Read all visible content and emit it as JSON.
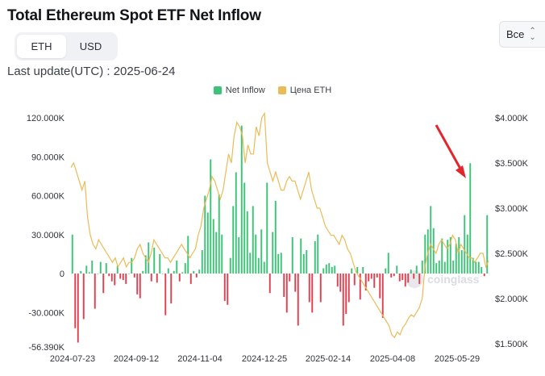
{
  "title": "Total Ethereum Spot ETF Net Inflow",
  "toggle": {
    "options": [
      "ETH",
      "USD"
    ],
    "selected": "ETH"
  },
  "last_update": "Last update(UTC) : 2025-06-24",
  "range_select": {
    "value": "Все"
  },
  "watermark": "coinglass",
  "colors": {
    "inflow_pos": "#3cc377",
    "inflow_neg": "#e0404f",
    "price": "#ebbb57",
    "arrow": "#e2262d"
  },
  "chart_data": {
    "type": "bar+line",
    "legend": [
      {
        "name": "Net Inflow",
        "color": "#3cc377"
      },
      {
        "name": "Цена ETH",
        "color": "#ebbb57"
      }
    ],
    "x_ticks": [
      "2024-07-23",
      "2024-09-12",
      "2024-11-04",
      "2024-12-25",
      "2025-02-14",
      "2025-04-08",
      "2025-05-29"
    ],
    "left_axis": {
      "ylim": [
        -56.39,
        120
      ],
      "ticks": [
        120,
        90,
        60,
        30,
        0,
        -30,
        -56.39
      ],
      "tick_labels": [
        "120.000K",
        "90.000K",
        "60.000K",
        "30.000K",
        "0",
        "-30.000K",
        "-56.390K"
      ]
    },
    "right_axis": {
      "ylim": [
        1.5,
        4.0
      ],
      "ticks": [
        4.0,
        3.5,
        3.0,
        2.5,
        2.0,
        1.5
      ],
      "tick_labels": [
        "$4.000K",
        "$3.500K",
        "$3.000K",
        "$2.500K",
        "$2.000K",
        "$1.500K"
      ]
    },
    "series": [
      {
        "name": "Net Inflow",
        "unit": "K ETH",
        "values": [
          30,
          -42,
          -53,
          2,
          -35,
          6,
          1,
          10,
          -27,
          0,
          9,
          -15,
          8,
          -2,
          -6,
          -9,
          6,
          -4,
          -5,
          -8,
          0,
          12,
          -3,
          -16,
          -19,
          2,
          14,
          24,
          -6,
          20,
          -7,
          15,
          0,
          -32,
          4,
          -23,
          2,
          10,
          -6,
          1,
          8,
          29,
          -8,
          2,
          -3,
          3,
          18,
          60,
          47,
          88,
          42,
          32,
          61,
          30,
          -21,
          -24,
          12,
          52,
          78,
          28,
          114,
          70,
          48,
          16,
          52,
          30,
          12,
          34,
          9,
          70,
          -15,
          32,
          56,
          15,
          16,
          -18,
          -30,
          -6,
          28,
          -14,
          -40,
          27,
          15,
          18,
          -22,
          -30,
          25,
          30,
          -22,
          4,
          7,
          8,
          5,
          6,
          -10,
          -14,
          -40,
          -31,
          -22,
          4,
          -9,
          5,
          -20,
          5,
          -13,
          -6,
          -4,
          -11,
          -3,
          -19,
          -34,
          4,
          16,
          -3,
          -2,
          6,
          -6,
          -5,
          -10,
          -7,
          3,
          -4,
          6,
          -8,
          10,
          30,
          34,
          52,
          35,
          8,
          10,
          27,
          9,
          26,
          28,
          10,
          23,
          28,
          18,
          45,
          30,
          85,
          12,
          9,
          9,
          5,
          -2,
          45
        ]
      },
      {
        "name": "Цена ETH",
        "unit": "$K",
        "values": [
          3.45,
          3.5,
          3.4,
          3.3,
          3.2,
          3.3,
          2.9,
          2.7,
          2.6,
          2.55,
          2.65,
          2.6,
          2.55,
          2.5,
          2.45,
          2.4,
          2.45,
          2.35,
          2.4,
          2.45,
          2.35,
          2.4,
          2.4,
          2.45,
          2.55,
          2.6,
          2.5,
          2.45,
          2.4,
          2.5,
          2.65,
          2.6,
          2.55,
          2.5,
          2.45,
          2.45,
          2.4,
          2.45,
          2.5,
          2.55,
          2.6,
          2.55,
          2.5,
          2.45,
          2.5,
          2.55,
          2.7,
          2.8,
          3.0,
          3.1,
          3.2,
          3.35,
          3.3,
          3.2,
          3.1,
          3.2,
          3.4,
          3.6,
          3.5,
          3.8,
          3.95,
          3.9,
          3.8,
          3.5,
          3.7,
          3.6,
          3.6,
          3.9,
          3.8,
          4.0,
          4.05,
          3.5,
          3.4,
          3.3,
          3.4,
          3.3,
          3.2,
          3.2,
          3.3,
          3.35,
          3.3,
          3.3,
          3.2,
          3.1,
          3.2,
          3.3,
          3.4,
          3.2,
          3.1,
          3.0,
          3.0,
          2.9,
          2.8,
          2.75,
          2.7,
          2.7,
          2.65,
          2.6,
          2.7,
          2.65,
          2.55,
          2.5,
          2.4,
          2.3,
          2.25,
          2.2,
          2.15,
          2.1,
          2.05,
          2.0,
          1.95,
          1.9,
          1.85,
          1.8,
          1.75,
          1.7,
          1.6,
          1.57,
          1.63,
          1.6,
          1.68,
          1.72,
          1.78,
          1.82,
          1.8,
          1.85,
          1.9,
          2.0,
          2.35,
          2.5,
          2.6,
          2.55,
          2.5,
          2.6,
          2.65,
          2.6,
          2.55,
          2.6,
          2.7,
          2.65,
          2.5,
          2.6,
          2.55,
          2.5,
          2.45,
          2.45,
          2.4,
          2.45,
          2.5,
          2.5,
          2.35,
          2.42
        ]
      }
    ]
  }
}
